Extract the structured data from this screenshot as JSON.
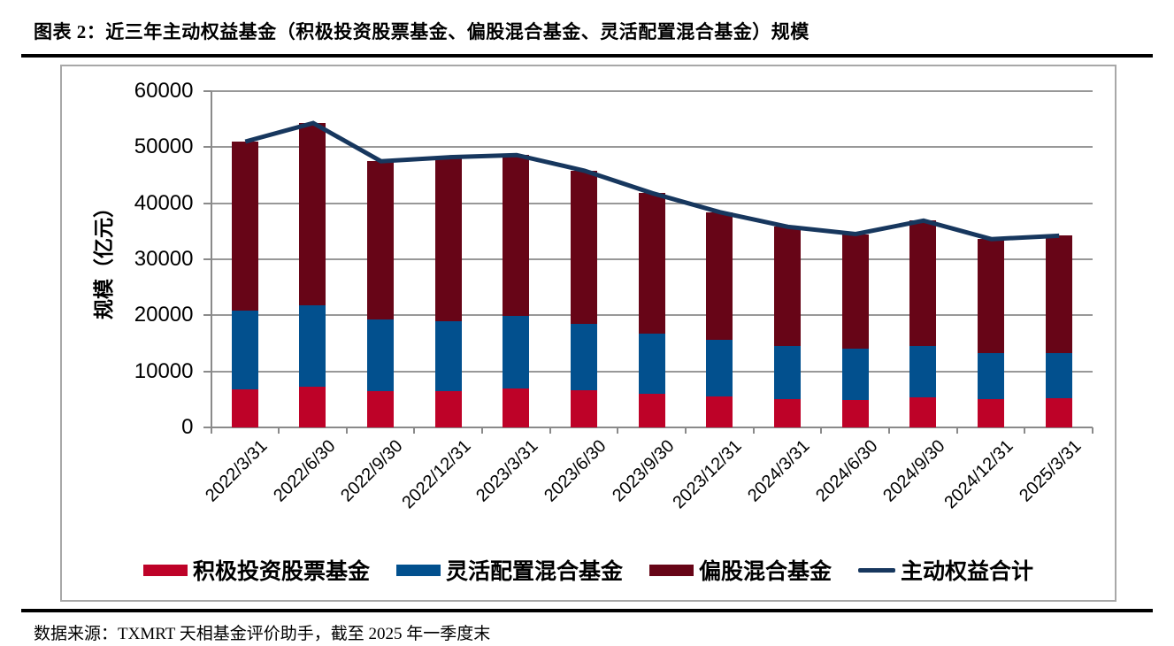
{
  "header": {
    "title": "图表 2：近三年主动权益基金（积极投资股票基金、偏股混合基金、灵活配置混合基金）规模"
  },
  "footer": {
    "source": "数据来源：TXMRT 天相基金评价助手，截至 2025 年一季度末"
  },
  "colors": {
    "active_stock_fund": "#BE0228",
    "flexible_allocation_fund": "#02508E",
    "partial_equity_fund": "#670517",
    "total_line": "#17375E",
    "gridline": "#989898",
    "frame_border": "#A8A8A8",
    "divider_rule": "#000000"
  },
  "chart_data": {
    "type": "bar",
    "stacked": true,
    "grid": true,
    "legend_position": "bottom",
    "ylabel": "规模（亿元）",
    "ylim": [
      0,
      60000
    ],
    "ytick_step": 10000,
    "ytick_labels": [
      "0",
      "10000",
      "20000",
      "30000",
      "40000",
      "50000",
      "60000"
    ],
    "xlabel_rotation": -45,
    "categories": [
      "2022/3/31",
      "2022/6/30",
      "2022/9/30",
      "2022/12/31",
      "2023/3/31",
      "2023/6/30",
      "2023/9/30",
      "2023/12/31",
      "2024/3/31",
      "2024/6/30",
      "2024/9/30",
      "2024/12/31",
      "2025/3/31"
    ],
    "series": [
      {
        "name": "积极投资股票基金",
        "type": "bar",
        "color": "#BE0228",
        "values": [
          6800,
          7300,
          6400,
          6500,
          6900,
          6600,
          6000,
          5500,
          5100,
          4900,
          5300,
          5000,
          5200
        ]
      },
      {
        "name": "灵活配置混合基金",
        "type": "bar",
        "color": "#02508E",
        "values": [
          14100,
          14500,
          12800,
          12500,
          13000,
          11800,
          10800,
          10100,
          9400,
          9200,
          9300,
          8200,
          8100
        ]
      },
      {
        "name": "偏股混合基金",
        "type": "bar",
        "color": "#670517",
        "values": [
          30100,
          32500,
          28300,
          29200,
          28700,
          27400,
          25000,
          22800,
          21300,
          20400,
          22300,
          20400,
          20900
        ]
      },
      {
        "name": "主动权益合计",
        "type": "line",
        "color": "#17375E",
        "values": [
          51000,
          54300,
          47500,
          48200,
          48600,
          45800,
          41800,
          38400,
          35800,
          34500,
          36900,
          33600,
          34200
        ]
      }
    ]
  }
}
